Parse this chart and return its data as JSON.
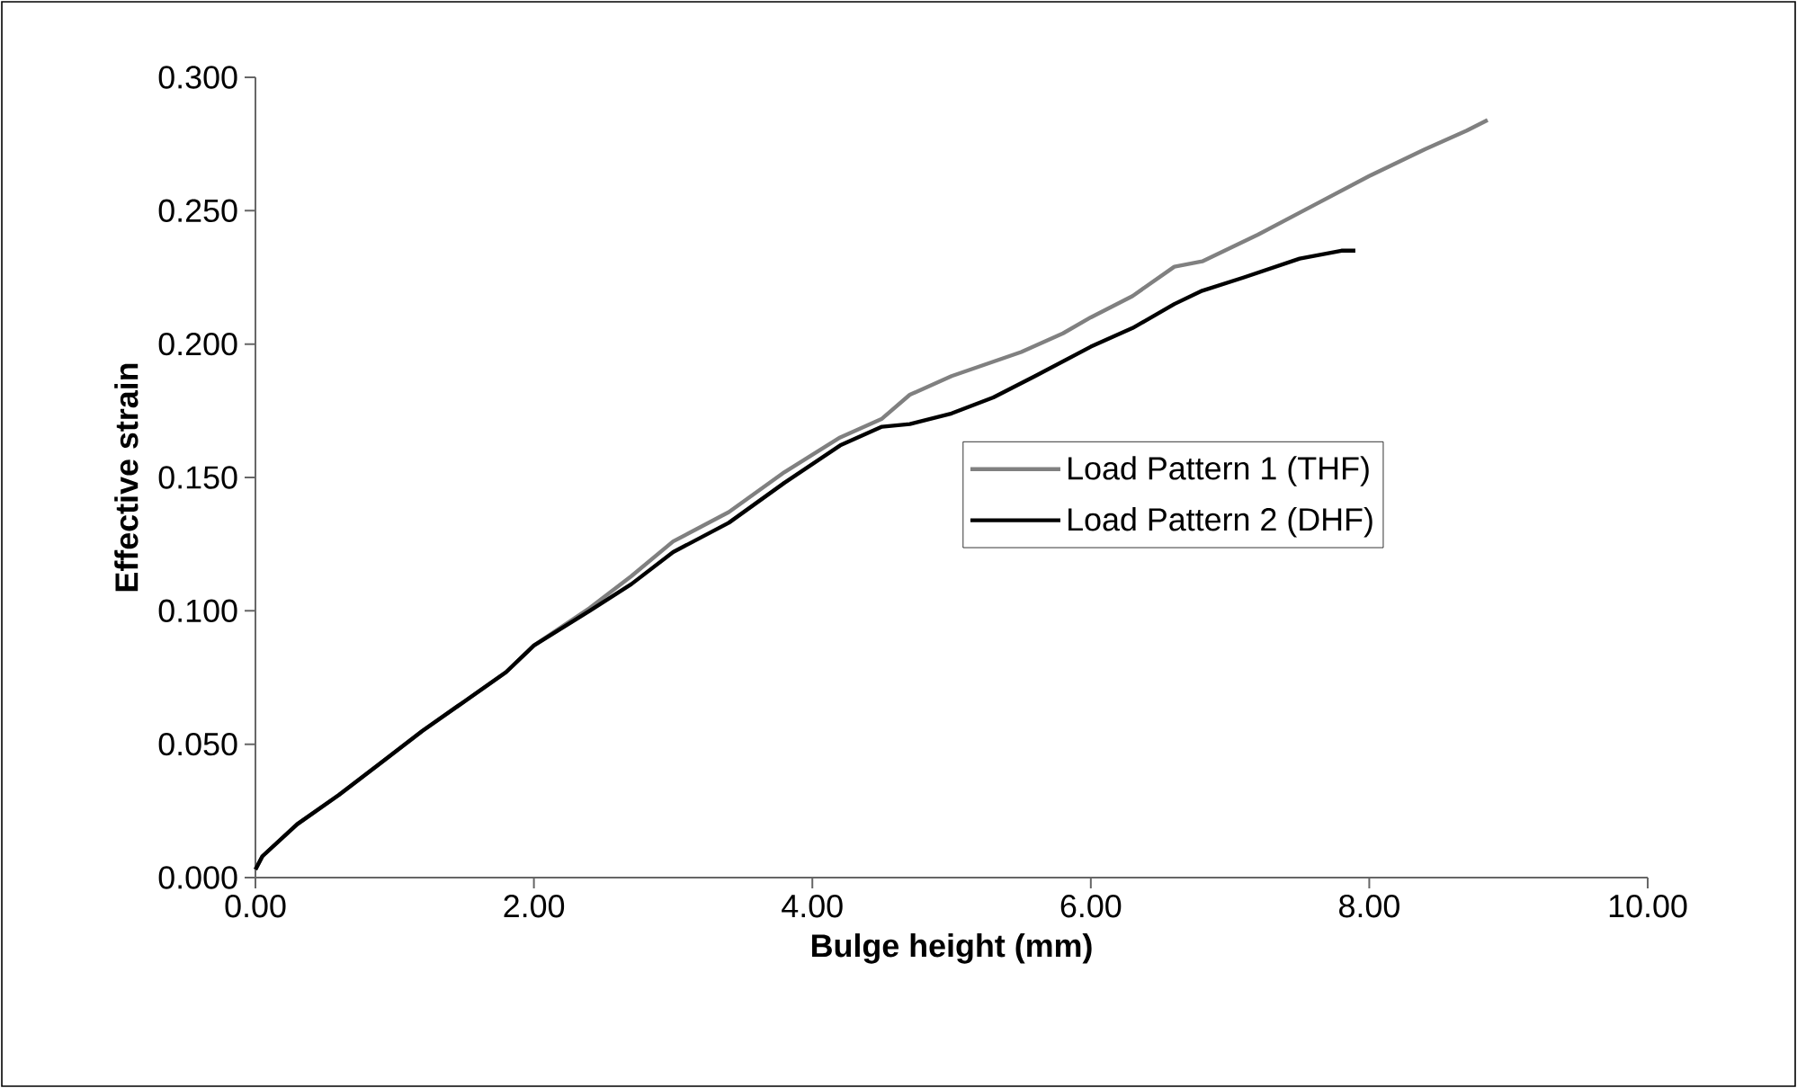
{
  "chart_data": {
    "type": "line",
    "xlabel": "Bulge height (mm)",
    "ylabel": "Effective strain",
    "xlim": [
      0,
      10
    ],
    "ylim": [
      0,
      0.3
    ],
    "xticks": [
      {
        "value": 0,
        "label": "0.00"
      },
      {
        "value": 2,
        "label": "2.00"
      },
      {
        "value": 4,
        "label": "4.00"
      },
      {
        "value": 6,
        "label": "6.00"
      },
      {
        "value": 8,
        "label": "8.00"
      },
      {
        "value": 10,
        "label": "10.00"
      }
    ],
    "yticks": [
      {
        "value": 0,
        "label": "0.000"
      },
      {
        "value": 0.05,
        "label": "0.050"
      },
      {
        "value": 0.1,
        "label": "0.100"
      },
      {
        "value": 0.15,
        "label": "0.150"
      },
      {
        "value": 0.2,
        "label": "0.200"
      },
      {
        "value": 0.25,
        "label": "0.250"
      },
      {
        "value": 0.3,
        "label": "0.300"
      }
    ],
    "grid": false,
    "legend": "right",
    "marker": "none",
    "line_style": "solid",
    "series": [
      {
        "name": "Load Pattern 1 (THF)",
        "color": "#808080",
        "x": [
          0,
          0.05,
          0.3,
          0.6,
          0.9,
          1.2,
          1.5,
          1.8,
          2.0,
          2.4,
          2.7,
          3.0,
          3.4,
          3.8,
          4.2,
          4.5,
          4.7,
          5.0,
          5.5,
          5.8,
          6.0,
          6.3,
          6.6,
          6.8,
          7.2,
          7.6,
          8.0,
          8.4,
          8.7,
          8.85
        ],
        "values": [
          0.003,
          0.008,
          0.02,
          0.031,
          0.043,
          0.055,
          0.066,
          0.077,
          0.087,
          0.101,
          0.113,
          0.126,
          0.137,
          0.152,
          0.165,
          0.172,
          0.181,
          0.188,
          0.197,
          0.204,
          0.21,
          0.218,
          0.229,
          0.231,
          0.241,
          0.252,
          0.263,
          0.273,
          0.28,
          0.284
        ]
      },
      {
        "name": "Load Pattern 2 (DHF)",
        "color": "#000000",
        "x": [
          0,
          0.05,
          0.3,
          0.6,
          0.9,
          1.2,
          1.5,
          1.8,
          2.0,
          2.4,
          2.7,
          3.0,
          3.4,
          3.8,
          4.2,
          4.5,
          4.7,
          5.0,
          5.3,
          5.6,
          6.0,
          6.3,
          6.6,
          6.8,
          7.1,
          7.5,
          7.8,
          7.9
        ],
        "values": [
          0.003,
          0.008,
          0.02,
          0.031,
          0.043,
          0.055,
          0.066,
          0.077,
          0.087,
          0.1,
          0.11,
          0.122,
          0.133,
          0.148,
          0.162,
          0.169,
          0.17,
          0.174,
          0.18,
          0.188,
          0.199,
          0.206,
          0.215,
          0.22,
          0.225,
          0.232,
          0.235,
          0.235
        ]
      }
    ]
  }
}
